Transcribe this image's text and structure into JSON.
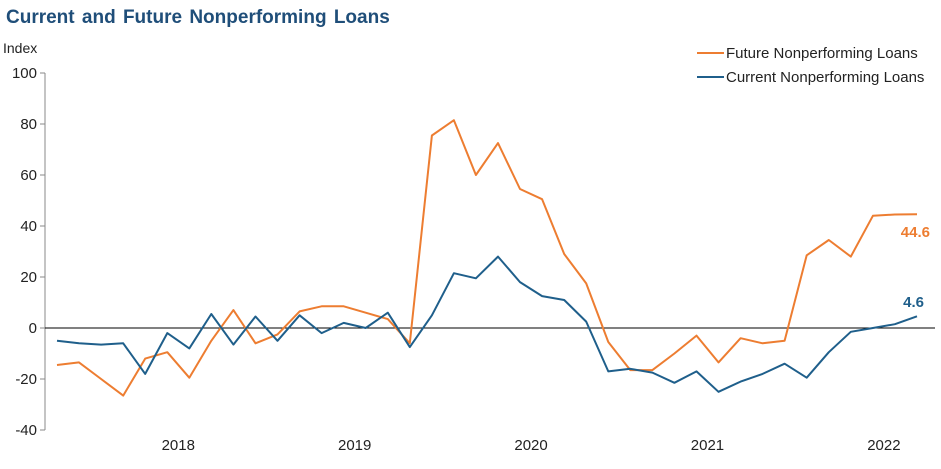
{
  "chart_data": {
    "type": "line",
    "title": "Current and Future Nonperforming Loans",
    "ylabel": "Index",
    "xlabel": "",
    "ylim": [
      -40,
      100
    ],
    "yticks": [
      100,
      80,
      60,
      40,
      20,
      0,
      -20,
      -40
    ],
    "year_labels": [
      "2018",
      "2019",
      "2020",
      "2021",
      "2022"
    ],
    "legend_position": "top-right",
    "grid": false,
    "colors": {
      "future": "#ed7d31",
      "current": "#1f5f8b",
      "zero_line": "#000000",
      "title": "#1f4e79"
    },
    "series": [
      {
        "name": "Future Nonperforming Loans",
        "key": "future",
        "end_label": "44.6",
        "values": [
          -14.5,
          -13.5,
          -20,
          -26.5,
          -12,
          -9.5,
          -19.5,
          -5,
          7,
          -6,
          -2.5,
          6.5,
          8.5,
          8.5,
          6,
          3.5,
          -6,
          75.5,
          81.5,
          60,
          72.5,
          54.5,
          50.5,
          29,
          17.5,
          -5.5,
          -16.5,
          -16.5,
          -10,
          -3,
          -13.5,
          -4,
          -6,
          -5,
          28.5,
          34.5,
          28,
          44,
          44.5,
          44.6
        ]
      },
      {
        "name": "Current Nonperforming Loans",
        "key": "current",
        "end_label": "4.6",
        "values": [
          -5,
          -6,
          -6.5,
          -6,
          -18,
          -2,
          -8,
          5.5,
          -6.5,
          4.5,
          -5,
          5,
          -2,
          2,
          0,
          6,
          -7.5,
          5,
          21.5,
          19.5,
          28,
          18,
          12.5,
          11,
          2.5,
          -17,
          -16,
          -17.5,
          -21.5,
          -17,
          -25,
          -21,
          -18,
          -14,
          -19.5,
          -9.5,
          -1.5,
          0,
          1.5,
          4.6
        ]
      }
    ]
  }
}
